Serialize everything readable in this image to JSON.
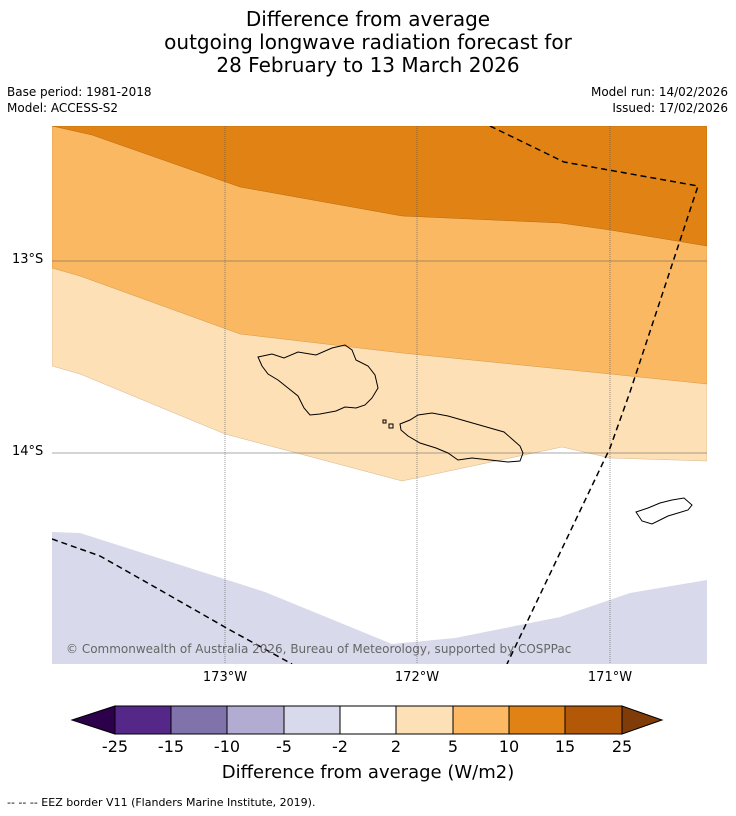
{
  "title": {
    "line1": "Difference from average",
    "line2": "outgoing longwave radiation forecast for",
    "line3": "28 February to 13 March 2026"
  },
  "meta": {
    "base_period": "Base period: 1981-2018",
    "model": "Model: ACCESS-S2",
    "model_run": "Model run: 14/02/2026",
    "issued": "Issued: 17/02/2026"
  },
  "map": {
    "lat_labels": [
      "13°S",
      "14°S"
    ],
    "lon_labels": [
      "173°W",
      "172°W",
      "171°W"
    ],
    "copyright": "© Commonwealth of Australia 2026, Bureau of Meteorology, supported by COSPPac",
    "colors": {
      "dark_orange": "#e08214",
      "mid_orange": "#fbb862",
      "light_orange": "#fde0b6",
      "light_purple": "#d8daeb",
      "grid": "#555555"
    }
  },
  "colorbar": {
    "ticks": [
      "-25",
      "-15",
      "-10",
      "-5",
      "-2",
      "2",
      "5",
      "10",
      "15",
      "25"
    ],
    "colors": [
      "#2d004b",
      "#542788",
      "#8073ac",
      "#b2abd2",
      "#d8daeb",
      "#ffffff",
      "#fee0b6",
      "#fdb863",
      "#e08214",
      "#b35806",
      "#7f3b08"
    ],
    "title": "Difference from average (W/m2)"
  },
  "footnote": "--  --  -- EEZ border V11 (Flanders Marine Institute, 2019)."
}
